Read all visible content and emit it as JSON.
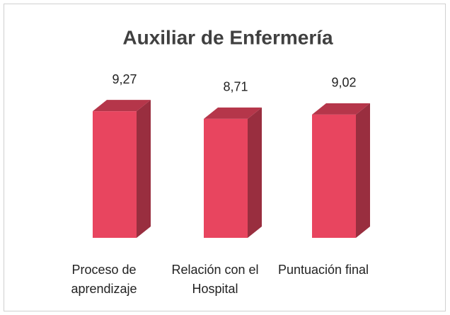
{
  "chart_data": {
    "type": "bar3d",
    "title": "Auxiliar de Enfermería",
    "categories": [
      "Proceso de aprendizaje",
      "Relación con el Hospital",
      "Puntuación final"
    ],
    "values": [
      9.27,
      8.71,
      9.02
    ],
    "value_labels": [
      "9,27",
      "8,71",
      "9,02"
    ],
    "color": "#e8455f"
  }
}
